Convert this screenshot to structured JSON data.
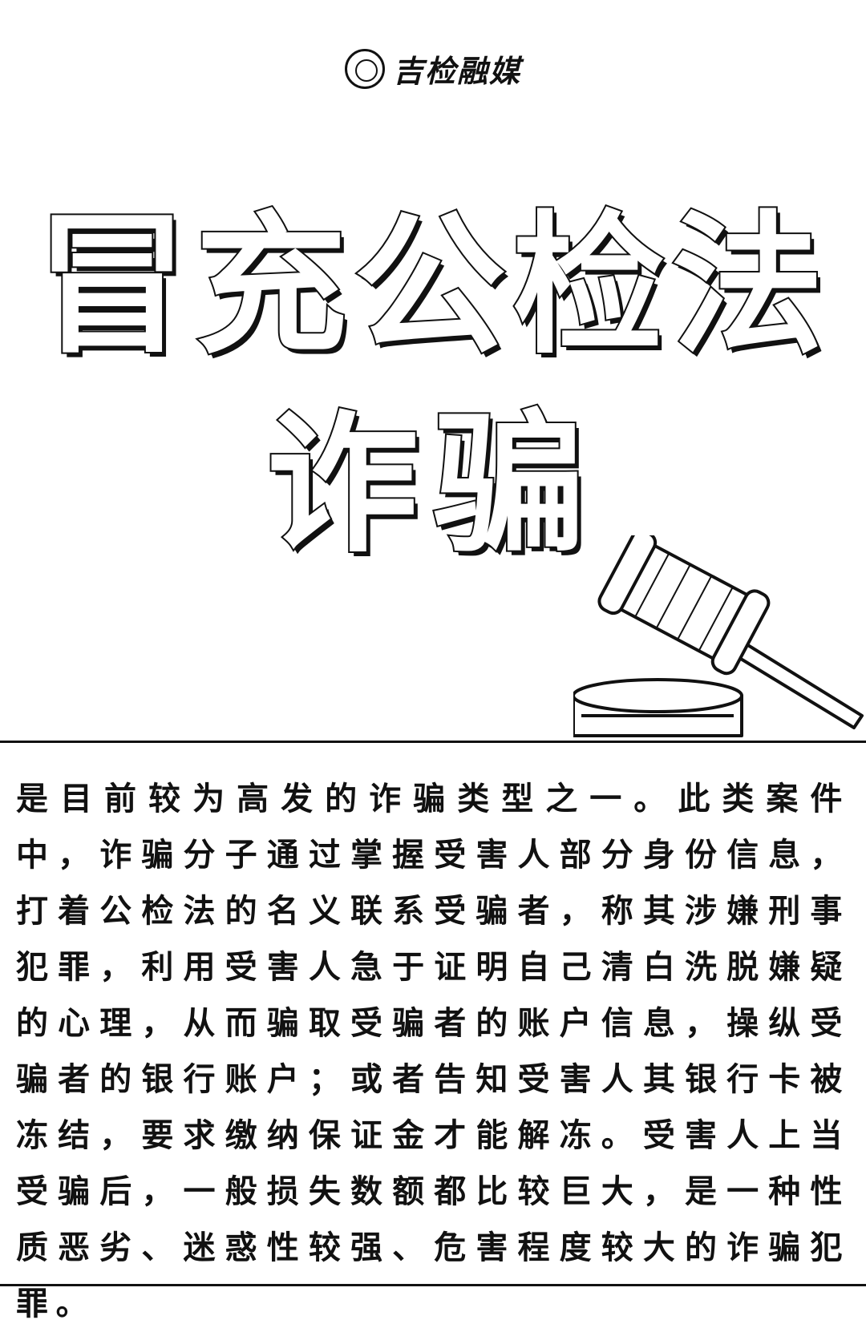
{
  "header": {
    "logo_text": "吉检融媒",
    "emblem_icon": "procuratorate-emblem-icon"
  },
  "title": {
    "line1": "冒充公检法",
    "line2": "诈骗"
  },
  "illustration": {
    "icon": "judge-gavel-icon"
  },
  "body": {
    "paragraph": "是目前较为高发的诈骗类型之一。此类案件中，诈骗分子通过掌握受害人部分身份信息，打着公检法的名义联系受骗者，称其涉嫌刑事犯罪，利用受害人急于证明自己清白洗脱嫌疑的心理，从而骗取受骗者的账户信息，操纵受骗者的银行账户；或者告知受害人其银行卡被冻结，要求缴纳保证金才能解冻。受害人上当受骗后，一般损失数额都比较巨大，是一种性质恶劣、迷惑性较强、危害程度较大的诈骗犯罪。"
  }
}
